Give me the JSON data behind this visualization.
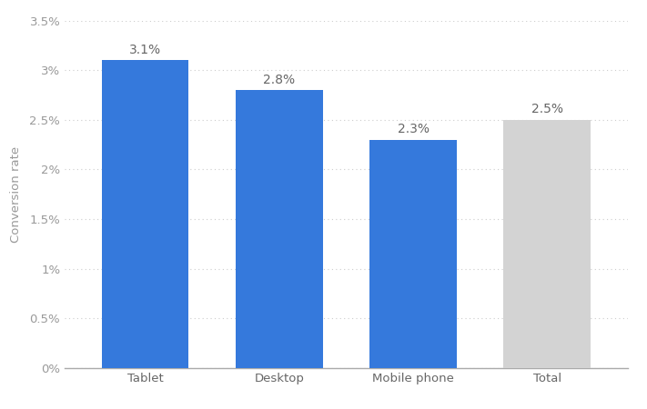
{
  "categories": [
    "Tablet",
    "Desktop",
    "Mobile phone",
    "Total"
  ],
  "values": [
    3.1,
    2.8,
    2.3,
    2.5
  ],
  "bar_colors": [
    "#3579dc",
    "#3579dc",
    "#3579dc",
    "#d3d3d3"
  ],
  "bar_labels": [
    "3.1%",
    "2.8%",
    "2.3%",
    "2.5%"
  ],
  "ylabel": "Conversion rate",
  "ylim": [
    0,
    3.5
  ],
  "yticks": [
    0,
    0.5,
    1.0,
    1.5,
    2.0,
    2.5,
    3.0,
    3.5
  ],
  "ytick_labels": [
    "0%",
    "0.5%",
    "1%",
    "1.5%",
    "2%",
    "2.5%",
    "3%",
    "3.5%"
  ],
  "background_color": "#ffffff",
  "grid_color": "#cccccc",
  "label_fontsize": 10,
  "tick_fontsize": 9.5,
  "ylabel_fontsize": 9.5,
  "bar_width": 0.65
}
